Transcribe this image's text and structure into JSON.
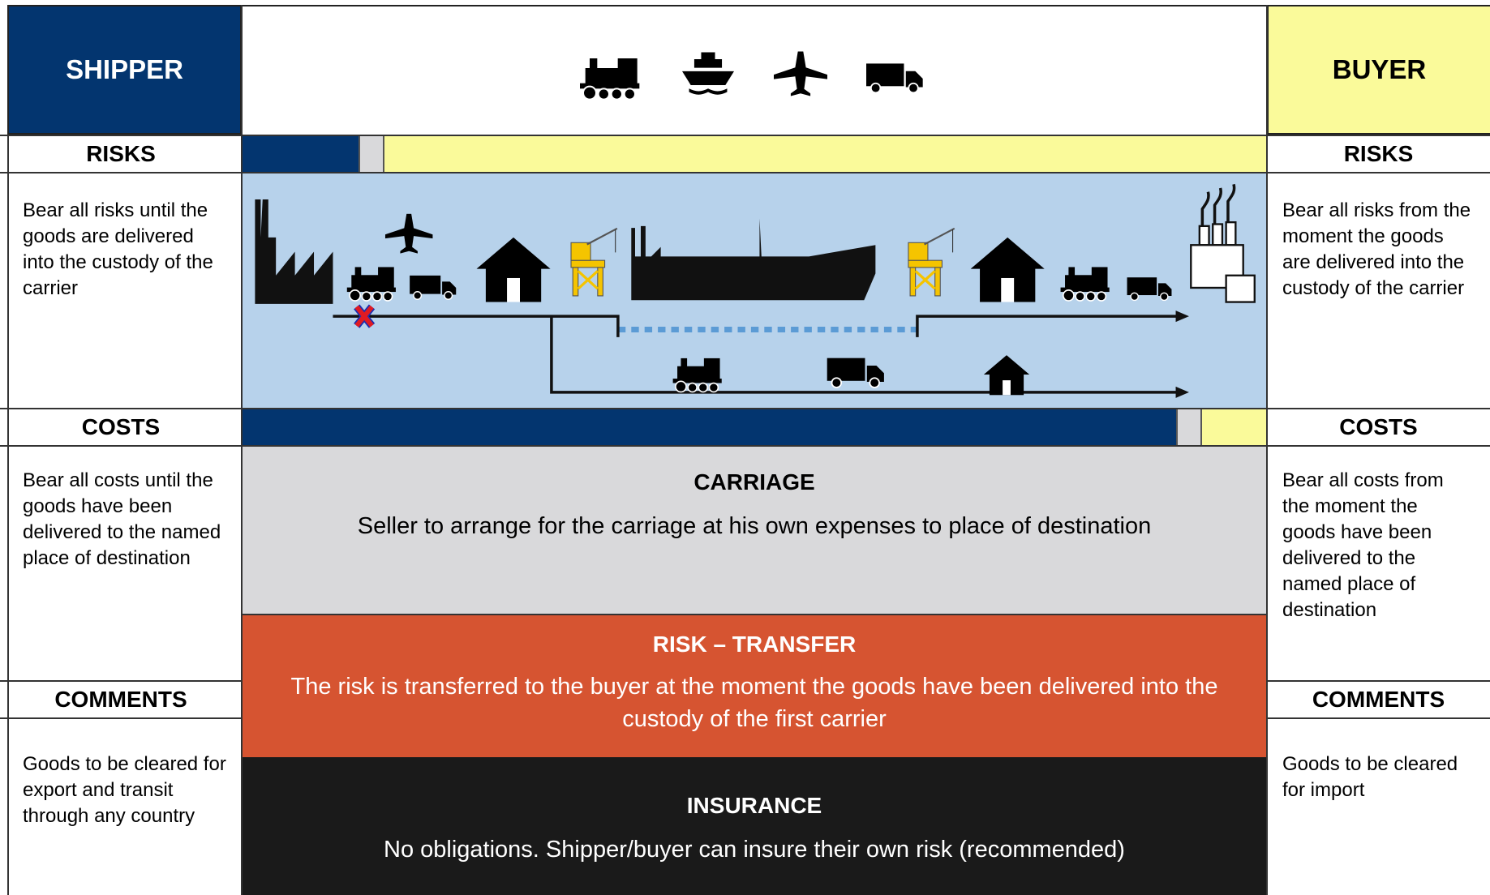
{
  "shipper": {
    "title": "SHIPPER",
    "risks": {
      "heading": "RISKS",
      "text": "Bear all risks until the goods are delivered into the custody of the carrier"
    },
    "costs": {
      "heading": "COSTS",
      "text": "Bear all costs until the goods have been delivered to the named place of destination"
    },
    "comments": {
      "heading": "COMMENTS",
      "text": "Goods to be cleared for export and transit through any country"
    }
  },
  "buyer": {
    "title": "BUYER",
    "risks": {
      "heading": "RISKS",
      "text": "Bear all risks from the moment the goods are delivered into the custody of the carrier"
    },
    "costs": {
      "heading": "COSTS",
      "text": "Bear all costs from the moment the goods have been delivered to the named place of destination"
    },
    "comments": {
      "heading": "COMMENTS",
      "text": "Goods to be cleared for import"
    }
  },
  "carriage": {
    "heading": "CARRIAGE",
    "text": "Seller to arrange for the carriage at his own expenses to place of destination"
  },
  "risk_transfer": {
    "heading": "RISK – TRANSFER",
    "text": "The risk is transferred to the buyer at the moment  the goods have been delivered into the custody of the first carrier"
  },
  "insurance": {
    "heading": "INSURANCE",
    "text": "No obligations. Shipper/buyer can insure their own risk (recommended)"
  }
}
